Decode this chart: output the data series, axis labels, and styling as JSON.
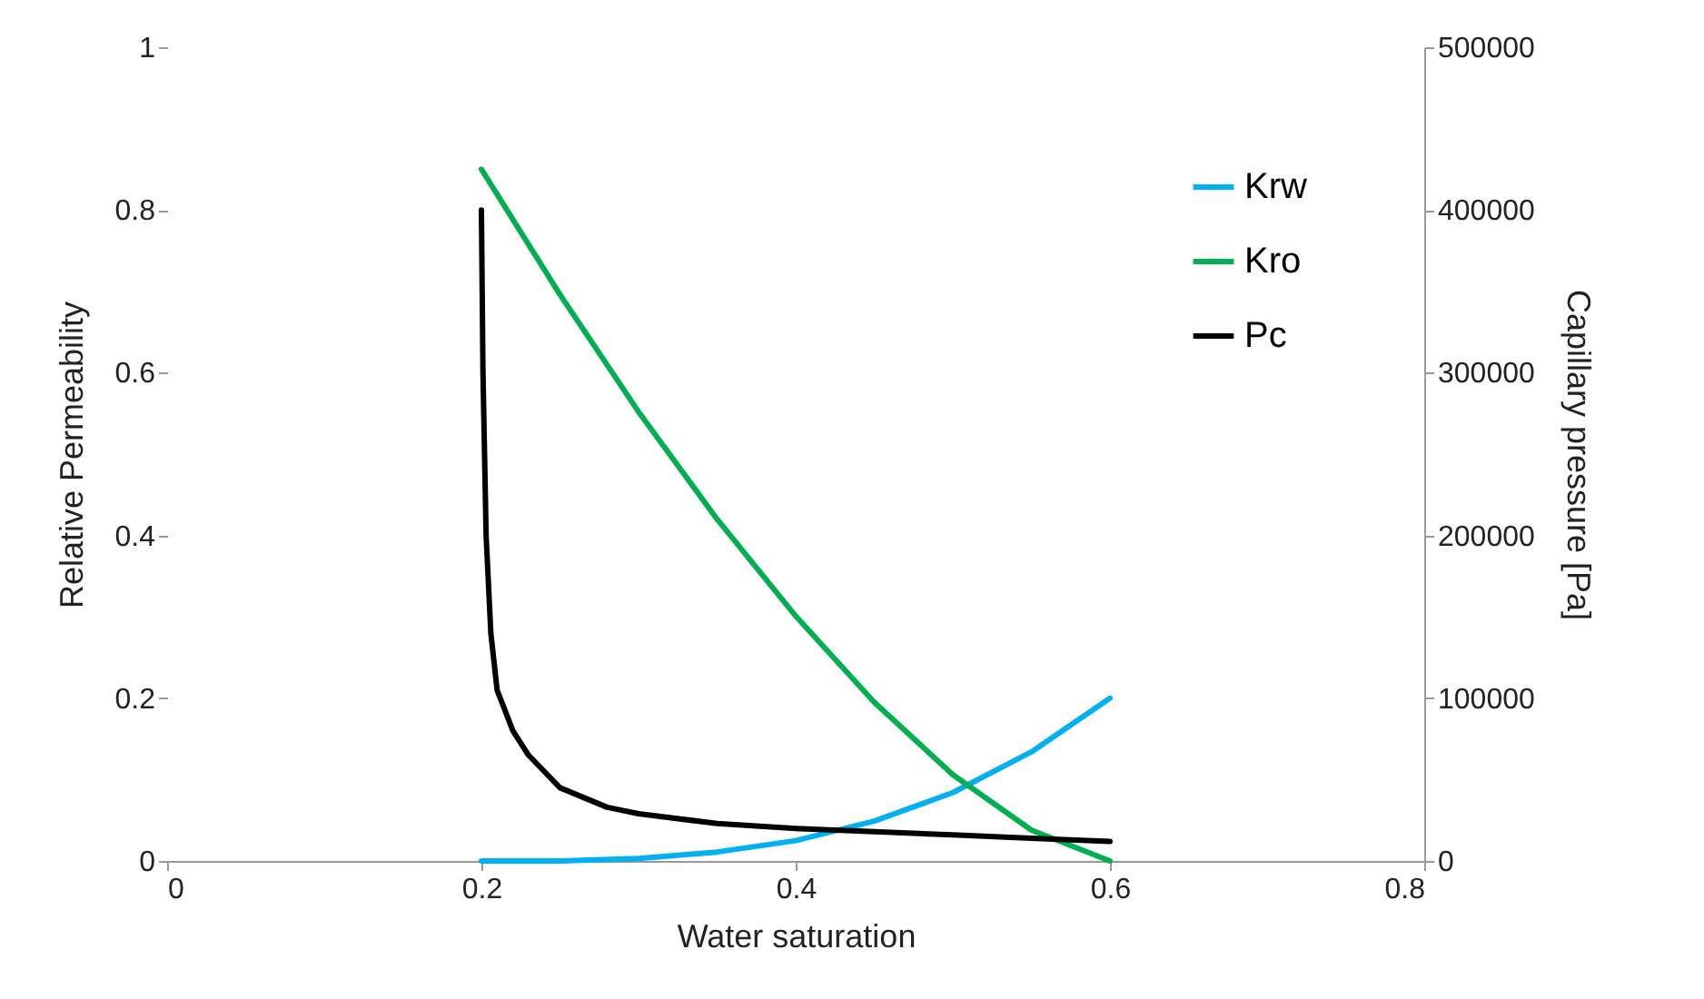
{
  "chart_data": {
    "type": "line",
    "xlabel": "Water saturation",
    "ylabel": "Relative Permeability",
    "y2label": "Capillary pressure [Pa]",
    "x": [
      0.2,
      0.25,
      0.3,
      0.35,
      0.4,
      0.45,
      0.5,
      0.55,
      0.6
    ],
    "series": [
      {
        "name": "Krw",
        "color": "#00b0f0",
        "values": [
          0,
          0,
          0.003,
          0.011,
          0.025,
          0.049,
          0.084,
          0.134,
          0.2
        ]
      },
      {
        "name": "Kro",
        "color": "#00b050",
        "values": [
          0.85,
          0.696,
          0.552,
          0.42,
          0.301,
          0.195,
          0.106,
          0.038,
          0
        ]
      },
      {
        "name": "Pc",
        "color": "#000000",
        "axis": "y2",
        "x": [
          0.2,
          0.201,
          0.203,
          0.206,
          0.21,
          0.22,
          0.23,
          0.25,
          0.28,
          0.3,
          0.35,
          0.4,
          0.45,
          0.5,
          0.55,
          0.6
        ],
        "values": [
          400000,
          300000,
          200000,
          140000,
          105000,
          80000,
          65000,
          45000,
          33000,
          29000,
          23000,
          20000,
          18000,
          16000,
          14000,
          12000
        ]
      }
    ],
    "xlim": [
      0,
      0.8
    ],
    "xticks": [
      0,
      0.2,
      0.4,
      0.6,
      0.8
    ],
    "ylim": [
      0,
      1
    ],
    "yticks": [
      0,
      0.2,
      0.4,
      0.6,
      0.8,
      1
    ],
    "y2lim": [
      0,
      500000
    ],
    "y2ticks": [
      0,
      100000,
      200000,
      300000,
      400000,
      500000
    ],
    "legend": "top right",
    "grid": false,
    "marker": "none",
    "line_style": "solid"
  }
}
